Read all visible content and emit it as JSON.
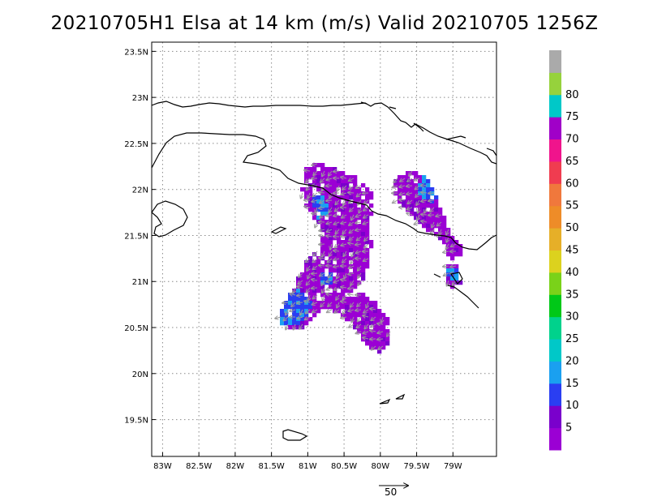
{
  "title": "20210705H1 Elsa at 14 km (m/s) Valid 20210705 1256Z",
  "map": {
    "lon_range": [
      -83.15,
      -78.4
    ],
    "lat_range": [
      19.1,
      23.6
    ],
    "lon_ticks": [
      {
        "value": -83.0,
        "label": "83W"
      },
      {
        "value": -82.5,
        "label": "82.5W"
      },
      {
        "value": -82.0,
        "label": "82W"
      },
      {
        "value": -81.5,
        "label": "81.5W"
      },
      {
        "value": -81.0,
        "label": "81W"
      },
      {
        "value": -80.5,
        "label": "80.5W"
      },
      {
        "value": -80.0,
        "label": "80W"
      },
      {
        "value": -79.5,
        "label": "79.5W"
      },
      {
        "value": -79.0,
        "label": "79W"
      }
    ],
    "lat_ticks": [
      {
        "value": 19.5,
        "label": "19.5N"
      },
      {
        "value": 20.0,
        "label": "20N"
      },
      {
        "value": 20.5,
        "label": "20.5N"
      },
      {
        "value": 21.0,
        "label": "21N"
      },
      {
        "value": 21.5,
        "label": "21.5N"
      },
      {
        "value": 22.0,
        "label": "22N"
      },
      {
        "value": 22.5,
        "label": "22.5N"
      },
      {
        "value": 23.0,
        "label": "23N"
      },
      {
        "value": 23.5,
        "label": "23.5N"
      }
    ],
    "grid": true
  },
  "colorbar": {
    "bins": [
      {
        "color": "#9b00d4",
        "label": "5"
      },
      {
        "color": "#7a00cc",
        "label": "10"
      },
      {
        "color": "#2a3ef2",
        "label": "15"
      },
      {
        "color": "#1aa0f0",
        "label": "20"
      },
      {
        "color": "#00c8c8",
        "label": "25"
      },
      {
        "color": "#00d28c",
        "label": "30"
      },
      {
        "color": "#00c818",
        "label": "35"
      },
      {
        "color": "#7ad219",
        "label": "40"
      },
      {
        "color": "#dcd21e",
        "label": "45"
      },
      {
        "color": "#e6af28",
        "label": "50"
      },
      {
        "color": "#ee8c28",
        "label": "55"
      },
      {
        "color": "#f0783c",
        "label": "60"
      },
      {
        "color": "#f03c50",
        "label": "65"
      },
      {
        "color": "#f0148c",
        "label": "70"
      },
      {
        "color": "#a000c8",
        "label": "75"
      },
      {
        "color": "#00c8c8",
        "label": "80"
      },
      {
        "color": "#96d23c",
        "label": ""
      },
      {
        "color": "#aaaaaa",
        "label": ""
      }
    ]
  },
  "wind_scale": {
    "label": "50"
  }
}
